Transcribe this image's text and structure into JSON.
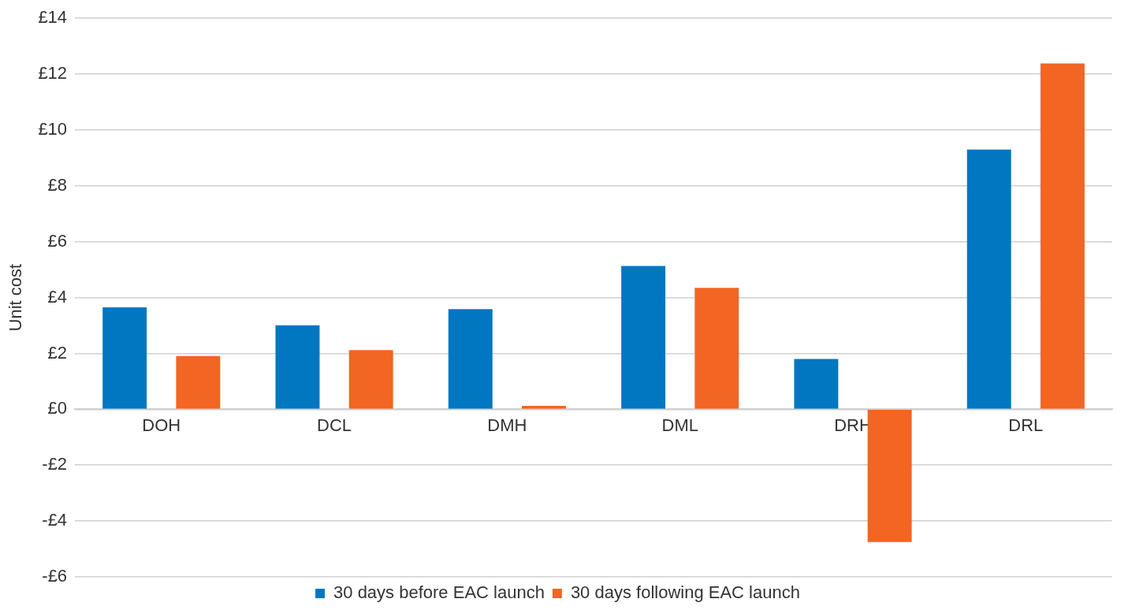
{
  "chart_data": {
    "type": "bar",
    "ylabel": "Unit cost",
    "categories": [
      "DOH",
      "DCL",
      "DMH",
      "DML",
      "DRH",
      "DRL"
    ],
    "series": [
      {
        "name": "30 days before EAC launch",
        "color": "#0077c0",
        "values": [
          3.65,
          3.01,
          3.59,
          5.13,
          1.8,
          9.3
        ]
      },
      {
        "name": "30 days following EAC launch",
        "color": "#f26522",
        "values": [
          1.91,
          2.12,
          0.12,
          4.35,
          -4.75,
          12.38
        ]
      }
    ],
    "ylim": [
      -6,
      14
    ],
    "yticks": [
      {
        "value": -6,
        "label": "-£6"
      },
      {
        "value": -4,
        "label": "-£4"
      },
      {
        "value": -2,
        "label": "-£2"
      },
      {
        "value": 0,
        "label": "£0"
      },
      {
        "value": 2,
        "label": "£2"
      },
      {
        "value": 4,
        "label": "£4"
      },
      {
        "value": 6,
        "label": "£6"
      },
      {
        "value": 8,
        "label": "£8"
      },
      {
        "value": 10,
        "label": "£10"
      },
      {
        "value": 12,
        "label": "£12"
      },
      {
        "value": 14,
        "label": "£14"
      }
    ],
    "grid": "y",
    "legend": "bottom"
  }
}
